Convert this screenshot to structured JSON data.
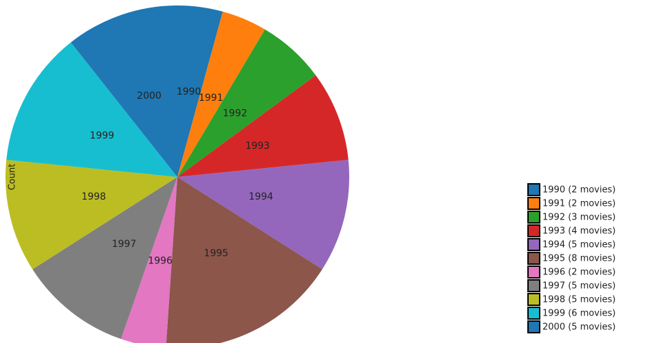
{
  "chart_data": {
    "type": "pie",
    "axis_label": "Count",
    "categories": [
      "1990",
      "1991",
      "1992",
      "1993",
      "1994",
      "1995",
      "1996",
      "1997",
      "1998",
      "1999",
      "2000"
    ],
    "values": [
      2,
      2,
      3,
      4,
      5,
      8,
      2,
      5,
      5,
      6,
      5
    ],
    "colors": [
      "#1f77b4",
      "#ff7f0e",
      "#2ca02c",
      "#d62728",
      "#9467bd",
      "#8c564b",
      "#e377c2",
      "#7f7f7f",
      "#bcbd22",
      "#17becf",
      "#1f77b4"
    ],
    "legend_labels": [
      "1990 (2 movies)",
      "1991 (2 movies)",
      "1992 (3 movies)",
      "1993 (4 movies)",
      "1994 (5 movies)",
      "1995 (8 movies)",
      "1996 (2 movies)",
      "1997 (5 movies)",
      "1998 (5 movies)",
      "1999 (6 movies)",
      "2000 (5 movies)"
    ],
    "legend_position": "right",
    "direction": "clockwise"
  }
}
